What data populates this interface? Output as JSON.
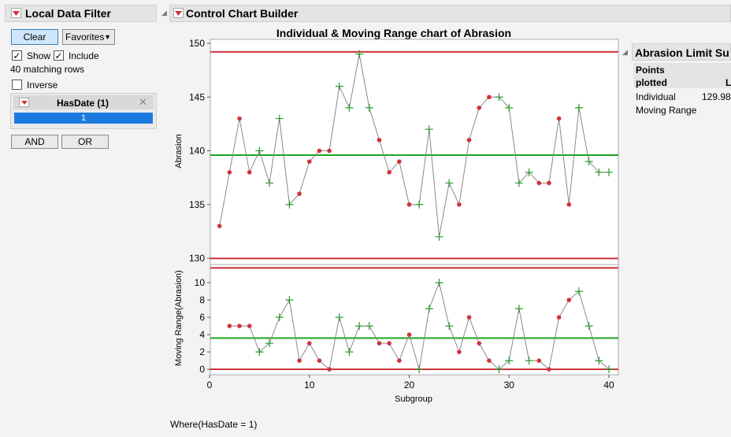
{
  "filter": {
    "title": "Local Data Filter",
    "clear_label": "Clear",
    "favorites_label": "Favorites",
    "show_label": "Show",
    "show_checked": true,
    "include_label": "Include",
    "include_checked": true,
    "matching_rows": "40 matching rows",
    "inverse_label": "Inverse",
    "inverse_checked": false,
    "column_title": "HasDate (1)",
    "level_value": "1",
    "and_label": "AND",
    "or_label": "OR"
  },
  "builder": {
    "title": "Control Chart Builder",
    "where_text": "Where(HasDate = 1)"
  },
  "limits_panel": {
    "title": "Abrasion Limit Su",
    "col_header_1": "Points",
    "col_header_2": "plotted",
    "col_header_3": "L",
    "rows": [
      {
        "label": "Individual",
        "value": "129.98"
      },
      {
        "label": "Moving Range",
        "value": ""
      }
    ]
  },
  "colors": {
    "limit_line": "#d0323c",
    "center_line": "#1ea51e",
    "point_red": "#d0323c",
    "point_green": "#2a9a2a",
    "connect_line": "#8a8a8a",
    "level_bar": "#1b7be0"
  },
  "chart_data": [
    {
      "type": "line",
      "title": "Individual & Moving Range chart of Abrasion",
      "ylabel": "Abrasion",
      "xlabel": "",
      "ylim": [
        130,
        150
      ],
      "yticks": [
        130,
        135,
        140,
        145,
        150
      ],
      "ucl": 149.2,
      "center": 139.6,
      "lcl": 129.98,
      "x": [
        1,
        2,
        3,
        4,
        5,
        6,
        7,
        8,
        9,
        10,
        11,
        12,
        13,
        14,
        15,
        16,
        17,
        18,
        19,
        20,
        21,
        22,
        23,
        24,
        25,
        26,
        27,
        28,
        29,
        30,
        31,
        32,
        33,
        34,
        35,
        36,
        37,
        38,
        39,
        40
      ],
      "values": [
        133,
        138,
        143,
        138,
        140,
        137,
        143,
        135,
        136,
        139,
        140,
        140,
        146,
        144,
        149,
        144,
        141,
        138,
        139,
        135,
        135,
        142,
        132,
        137,
        135,
        141,
        144,
        145,
        145,
        144,
        137,
        138,
        137,
        137,
        143,
        135,
        144,
        139,
        138,
        138
      ],
      "markers": [
        "dot",
        "dot",
        "dot",
        "dot",
        "plus",
        "plus",
        "plus",
        "plus",
        "dot",
        "dot",
        "dot",
        "dot",
        "plus",
        "plus",
        "plus",
        "plus",
        "dot",
        "dot",
        "dot",
        "dot",
        "plus",
        "plus",
        "plus",
        "plus",
        "dot",
        "dot",
        "dot",
        "dot",
        "plus",
        "plus",
        "plus",
        "plus",
        "dot",
        "dot",
        "dot",
        "dot",
        "plus",
        "plus",
        "plus",
        "plus"
      ]
    },
    {
      "type": "line",
      "title": "",
      "ylabel": "Moving Range(Abrasion)",
      "xlabel": "Subgroup",
      "ylim": [
        0,
        10
      ],
      "yticks": [
        0,
        2,
        4,
        6,
        8,
        10
      ],
      "xlim": [
        0,
        40
      ],
      "xticks": [
        0,
        10,
        20,
        30,
        40
      ],
      "ucl": 11.7,
      "center": 3.6,
      "lcl": 0,
      "x": [
        2,
        3,
        4,
        5,
        6,
        7,
        8,
        9,
        10,
        11,
        12,
        13,
        14,
        15,
        16,
        17,
        18,
        19,
        20,
        21,
        22,
        23,
        24,
        25,
        26,
        27,
        28,
        29,
        30,
        31,
        32,
        33,
        34,
        35,
        36,
        37,
        38,
        39,
        40
      ],
      "values": [
        5,
        5,
        5,
        2,
        3,
        6,
        8,
        1,
        3,
        1,
        0,
        6,
        2,
        5,
        5,
        3,
        3,
        1,
        4,
        0,
        7,
        10,
        5,
        2,
        6,
        3,
        1,
        0,
        1,
        7,
        1,
        1,
        0,
        6,
        8,
        9,
        5,
        1,
        0
      ],
      "markers": [
        "dot",
        "dot",
        "dot",
        "plus",
        "plus",
        "plus",
        "plus",
        "dot",
        "dot",
        "dot",
        "dot",
        "plus",
        "plus",
        "plus",
        "plus",
        "dot",
        "dot",
        "dot",
        "dot",
        "plus",
        "plus",
        "plus",
        "plus",
        "dot",
        "dot",
        "dot",
        "dot",
        "plus",
        "plus",
        "plus",
        "plus",
        "dot",
        "dot",
        "dot",
        "dot",
        "plus",
        "plus",
        "plus",
        "plus"
      ]
    }
  ]
}
